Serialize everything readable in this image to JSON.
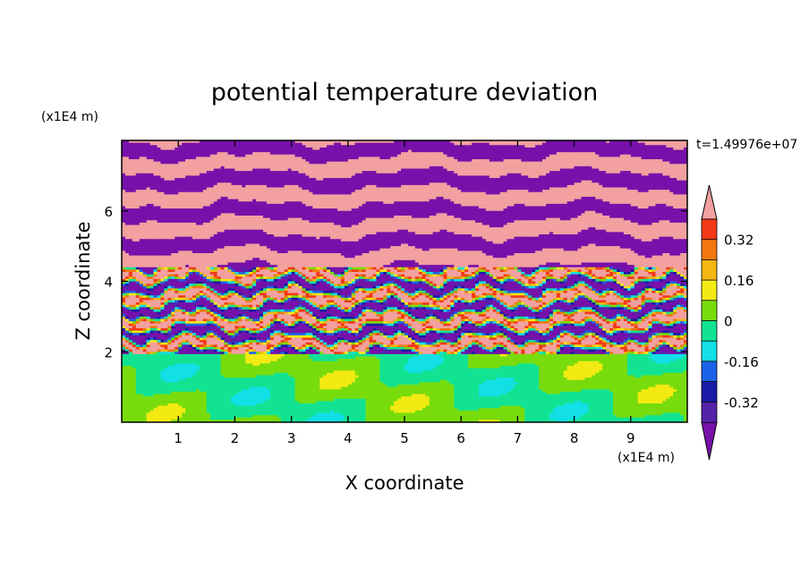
{
  "chart_data": {
    "type": "heatmap",
    "title": "potential temperature deviation",
    "xlabel": "X coordinate",
    "ylabel": "Z coordinate",
    "x_units": "(x1E4 m)",
    "y_units": "(x1E4 m)",
    "time_label": "t=1.49976e+07",
    "xlim": [
      0,
      10
    ],
    "ylim": [
      0,
      8
    ],
    "x_ticks": [
      1,
      2,
      3,
      4,
      5,
      6,
      7,
      8,
      9
    ],
    "y_ticks": [
      2,
      4,
      6
    ],
    "colorbar": {
      "levels": [
        -0.48,
        -0.4,
        -0.32,
        -0.24,
        -0.16,
        -0.08,
        0,
        0.08,
        0.16,
        0.24,
        0.32,
        0.4,
        0.48
      ],
      "tick_labels": [
        "0.32",
        "0.16",
        "0",
        "-0.16",
        "-0.32"
      ],
      "tick_values": [
        0.32,
        0.16,
        0,
        -0.16,
        -0.32
      ],
      "colors": [
        "#7711aa",
        "#5522aa",
        "#1a1aa8",
        "#1c63e8",
        "#12dfe6",
        "#12e392",
        "#78dc0c",
        "#f2ea12",
        "#f3b612",
        "#f37810",
        "#f23a18",
        "#f2a0a0"
      ],
      "extend": "both"
    },
    "field_description": [
      {
        "z_range": [
          0,
          1.9
        ],
        "dominant": [
          "0.04",
          "-0.04"
        ],
        "note": "lower layer green / teal"
      },
      {
        "z_range": [
          1.9,
          4.2
        ],
        "dominant": [
          "mixed"
        ],
        "note": "turbulent band with all levels"
      },
      {
        "z_range": [
          4.2,
          8
        ],
        "dominant": [
          "0.48",
          "-0.48"
        ],
        "note": "alternating pink / purple streaks"
      }
    ]
  }
}
